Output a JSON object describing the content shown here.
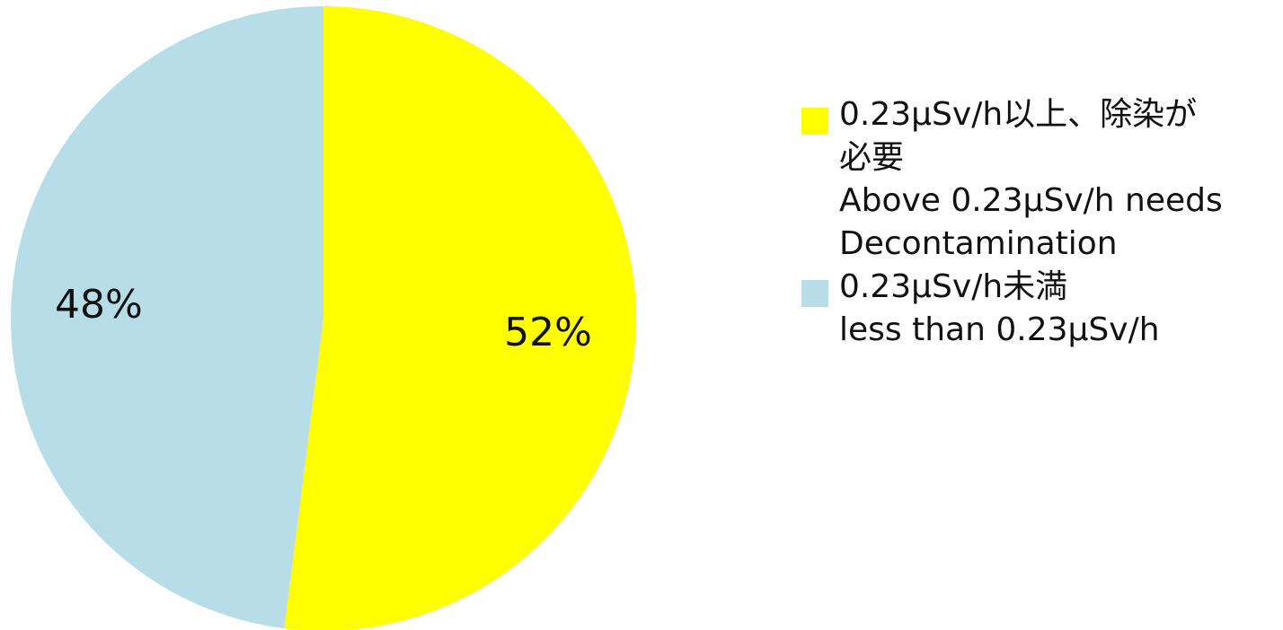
{
  "chart_data": {
    "type": "pie",
    "title": "",
    "slices": [
      {
        "percent_label": "52%",
        "value": 52,
        "color": "#FFFF00",
        "legend_lines": [
          "0.23μSv/h以上、除染が",
          "必要",
          "Above 0.23μSv/h needs",
          "Decontamination"
        ]
      },
      {
        "percent_label": "48%",
        "value": 48,
        "color": "#B7DDE8",
        "legend_lines": [
          "0.23μSv/h未満",
          "less than 0.23μSv/h"
        ]
      }
    ],
    "legend_position": "right"
  }
}
